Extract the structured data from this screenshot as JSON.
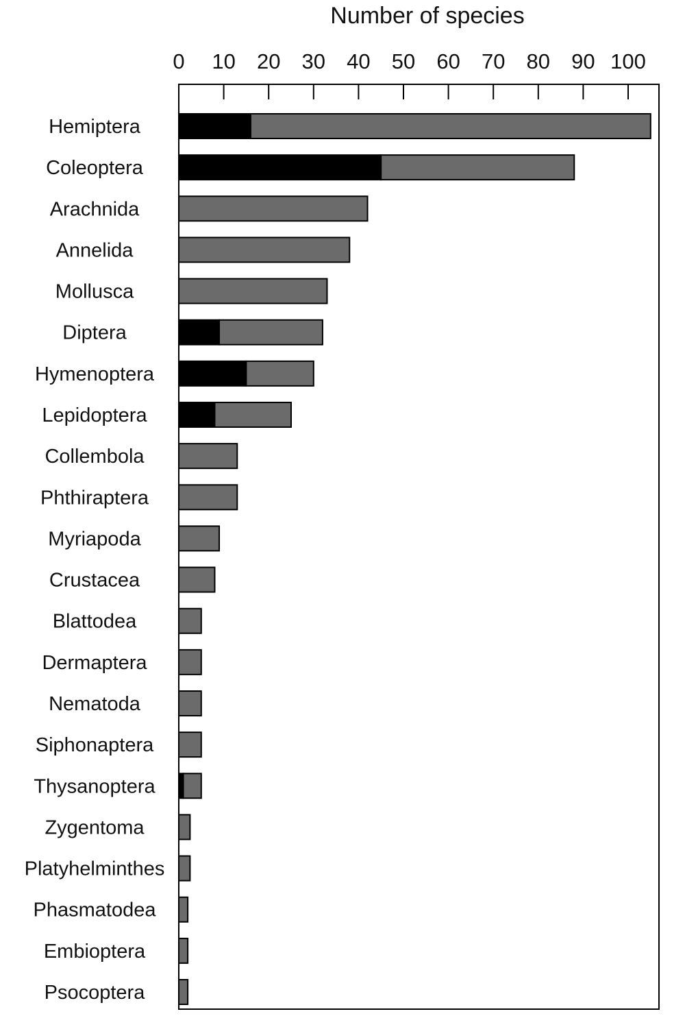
{
  "chart_data": {
    "type": "bar",
    "orientation": "horizontal",
    "stacked": true,
    "xlabel": "Number of species",
    "xlim": [
      0,
      106
    ],
    "xticks": [
      0,
      10,
      20,
      30,
      40,
      50,
      60,
      70,
      80,
      90,
      100
    ],
    "x_axis_position": "top",
    "grid": false,
    "legend": "none",
    "categories": [
      "Hemiptera",
      "Coleoptera",
      "Arachnida",
      "Annelida",
      "Mollusca",
      "Diptera",
      "Hymenoptera",
      "Lepidoptera",
      "Collembola",
      "Phthiraptera",
      "Myriapoda",
      "Crustacea",
      "Blattodea",
      "Dermaptera",
      "Nematoda",
      "Siphonaptera",
      "Thysanoptera",
      "Zygentoma",
      "Platyhelminthes",
      "Phasmatodea",
      "Embioptera",
      "Psocoptera"
    ],
    "series": [
      {
        "color": "#000000",
        "values": [
          16,
          45,
          0,
          0,
          0,
          9,
          15,
          8,
          0,
          0,
          0,
          0,
          0,
          0,
          0,
          0,
          1,
          0,
          0,
          0,
          0,
          0
        ]
      },
      {
        "color": "#6b6b6b",
        "values": [
          89,
          43,
          42,
          38,
          33,
          23,
          15,
          17,
          13,
          13,
          9,
          8,
          5,
          5,
          5,
          5,
          4,
          2.5,
          2.5,
          2,
          2,
          2
        ]
      }
    ]
  }
}
